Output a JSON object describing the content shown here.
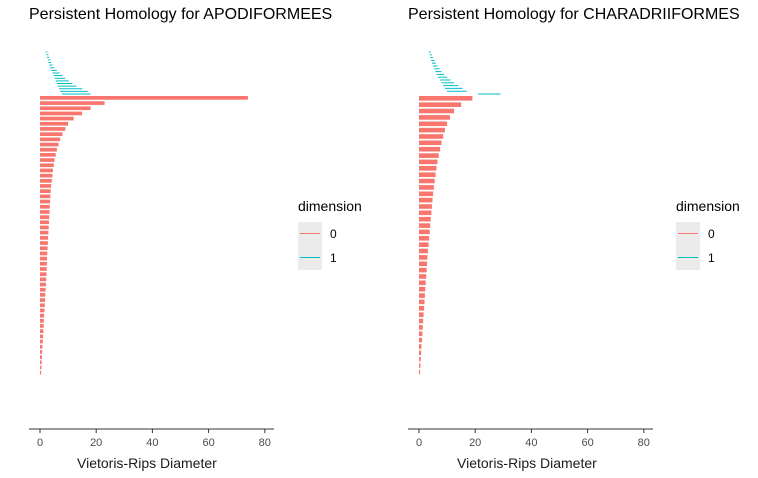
{
  "colors": {
    "dim0": "#F8766D",
    "dim1": "#00BFC4"
  },
  "chart_data": [
    {
      "type": "bar",
      "title": "Persistent Homology for APODIFORMEES",
      "xlabel": "Vietoris-Rips Diameter",
      "xlim": [
        0,
        80
      ],
      "xticks": [
        "0",
        "20",
        "40",
        "60",
        "80"
      ],
      "legend": {
        "title": "dimension",
        "position": "right",
        "entries": [
          "0",
          "1"
        ]
      },
      "series": [
        {
          "name": "1",
          "bars": [
            [
              2.0,
              2.6
            ],
            [
              2.3,
              3.0
            ],
            [
              2.5,
              3.3
            ],
            [
              2.8,
              3.7
            ],
            [
              3.0,
              4.0
            ],
            [
              3.3,
              4.5
            ],
            [
              3.6,
              5.2
            ],
            [
              4.0,
              6.0
            ],
            [
              4.4,
              7.0
            ],
            [
              4.8,
              8.0
            ],
            [
              5.2,
              9.0
            ],
            [
              5.6,
              10.2
            ],
            [
              6.0,
              11.5
            ],
            [
              6.4,
              13.0
            ],
            [
              6.8,
              15.0
            ],
            [
              7.2,
              17.0
            ],
            [
              7.8,
              18.0
            ]
          ]
        },
        {
          "name": "0",
          "bars": [
            [
              0,
              74
            ],
            [
              0,
              23
            ],
            [
              0,
              18
            ],
            [
              0,
              15
            ],
            [
              0,
              12
            ],
            [
              0,
              10
            ],
            [
              0,
              9
            ],
            [
              0,
              8
            ],
            [
              0,
              7.2
            ],
            [
              0,
              6.6
            ],
            [
              0,
              6.0
            ],
            [
              0,
              5.6
            ],
            [
              0,
              5.2
            ],
            [
              0,
              4.9
            ],
            [
              0,
              4.6
            ],
            [
              0,
              4.4
            ],
            [
              0,
              4.2
            ],
            [
              0,
              4.0
            ],
            [
              0,
              3.8
            ],
            [
              0,
              3.7
            ],
            [
              0,
              3.6
            ],
            [
              0,
              3.5
            ],
            [
              0,
              3.4
            ],
            [
              0,
              3.3
            ],
            [
              0,
              3.2
            ],
            [
              0,
              3.1
            ],
            [
              0,
              3.0
            ],
            [
              0,
              2.9
            ],
            [
              0,
              2.8
            ],
            [
              0,
              2.7
            ],
            [
              0,
              2.6
            ],
            [
              0,
              2.5
            ],
            [
              0,
              2.45
            ],
            [
              0,
              2.4
            ],
            [
              0,
              2.3
            ],
            [
              0,
              2.2
            ],
            [
              0,
              2.1
            ],
            [
              0,
              2.0
            ],
            [
              0,
              1.9
            ],
            [
              0,
              1.8
            ],
            [
              0,
              1.7
            ],
            [
              0,
              1.6
            ],
            [
              0,
              1.5
            ],
            [
              0,
              1.4
            ],
            [
              0,
              1.3
            ],
            [
              0,
              1.2
            ],
            [
              0,
              1.1
            ],
            [
              0,
              1.0
            ],
            [
              0,
              0.9
            ],
            [
              0,
              0.8
            ],
            [
              0,
              0.7
            ],
            [
              0,
              0.6
            ],
            [
              0,
              0.5
            ],
            [
              0,
              0.4
            ]
          ]
        }
      ]
    },
    {
      "type": "bar",
      "title": "Persistent Homology for CHARADRIIFORMES",
      "xlabel": "Vietoris-Rips Diameter",
      "xlim": [
        0,
        80
      ],
      "xticks": [
        "0",
        "20",
        "40",
        "60",
        "80"
      ],
      "legend": {
        "title": "dimension",
        "position": "right",
        "entries": [
          "0",
          "1"
        ]
      },
      "series": [
        {
          "name": "1",
          "bars": [
            [
              3.5,
              4.2
            ],
            [
              3.8,
              4.6
            ],
            [
              4.0,
              5.0
            ],
            [
              4.3,
              5.5
            ],
            [
              4.6,
              6.0
            ],
            [
              5.0,
              6.6
            ],
            [
              5.4,
              7.3
            ],
            [
              5.8,
              8.0
            ],
            [
              6.2,
              9.0
            ],
            [
              6.8,
              10.0
            ],
            [
              7.4,
              11.2
            ],
            [
              8.0,
              12.5
            ],
            [
              8.6,
              14.0
            ],
            [
              9.2,
              15.5
            ],
            [
              10.0,
              17.0
            ],
            [
              21.0,
              29.0
            ]
          ]
        },
        {
          "name": "0",
          "bars": [
            [
              0,
              19
            ],
            [
              0,
              15
            ],
            [
              0,
              12.5
            ],
            [
              0,
              11
            ],
            [
              0,
              10
            ],
            [
              0,
              9.2
            ],
            [
              0,
              8.6
            ],
            [
              0,
              8.0
            ],
            [
              0,
              7.5
            ],
            [
              0,
              7.0
            ],
            [
              0,
              6.6
            ],
            [
              0,
              6.2
            ],
            [
              0,
              5.9
            ],
            [
              0,
              5.6
            ],
            [
              0,
              5.3
            ],
            [
              0,
              5.0
            ],
            [
              0,
              4.8
            ],
            [
              0,
              4.6
            ],
            [
              0,
              4.4
            ],
            [
              0,
              4.2
            ],
            [
              0,
              4.0
            ],
            [
              0,
              3.8
            ],
            [
              0,
              3.6
            ],
            [
              0,
              3.4
            ],
            [
              0,
              3.2
            ],
            [
              0,
              3.0
            ],
            [
              0,
              2.85
            ],
            [
              0,
              2.7
            ],
            [
              0,
              2.55
            ],
            [
              0,
              2.4
            ],
            [
              0,
              2.25
            ],
            [
              0,
              2.1
            ],
            [
              0,
              1.95
            ],
            [
              0,
              1.8
            ],
            [
              0,
              1.65
            ],
            [
              0,
              1.5
            ],
            [
              0,
              1.35
            ],
            [
              0,
              1.2
            ],
            [
              0,
              1.05
            ],
            [
              0,
              0.9
            ],
            [
              0,
              0.75
            ],
            [
              0,
              0.6
            ],
            [
              0,
              0.5
            ],
            [
              0,
              0.4
            ]
          ]
        }
      ]
    }
  ]
}
